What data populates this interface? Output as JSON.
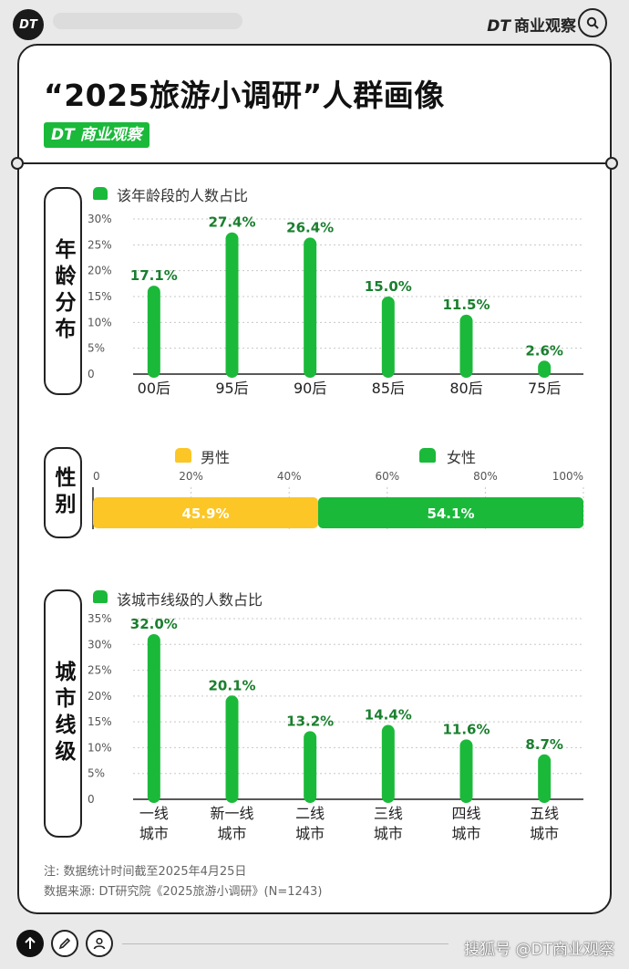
{
  "header": {
    "logo": "DT",
    "brand_mark": "DT",
    "brand_name": "商业观察"
  },
  "title": "“2025旅游小调研”人群画像",
  "badge": {
    "mark": "DT",
    "name": "商业观察"
  },
  "colors": {
    "green": "#1bb93a",
    "yellow": "#fcc626",
    "label_green": "#1a7f2e",
    "dark": "#222222"
  },
  "age_section": {
    "label": "年龄分布",
    "legend": "该年龄段的人数占比"
  },
  "gender_section": {
    "label": "性别"
  },
  "city_section": {
    "label": "城市线级",
    "legend": "该城市线级的人数占比"
  },
  "chart_data": [
    {
      "type": "bar",
      "categories": [
        "00后",
        "95后",
        "90后",
        "85后",
        "80后",
        "75后"
      ],
      "values": [
        17.1,
        27.4,
        26.4,
        15.0,
        11.5,
        2.6
      ],
      "value_labels": [
        "17.1%",
        "27.4%",
        "26.4%",
        "15.0%",
        "11.5%",
        "2.6%"
      ],
      "yticks": [
        "30%",
        "25%",
        "20%",
        "15%",
        "10%",
        "5%",
        "0"
      ],
      "ylim": [
        0,
        30
      ],
      "series": [
        {
          "name": "该年龄段的人数占比"
        }
      ]
    },
    {
      "type": "bar",
      "orientation": "horizontal-stacked",
      "series": [
        {
          "name": "男性",
          "value": 45.9,
          "label": "45.9%"
        },
        {
          "name": "女性",
          "value": 54.1,
          "label": "54.1%"
        }
      ],
      "xticks": [
        "0",
        "20%",
        "40%",
        "60%",
        "80%",
        "100%"
      ],
      "xlim": [
        0,
        100
      ]
    },
    {
      "type": "bar",
      "categories": [
        [
          "一线",
          "城市"
        ],
        [
          "新一线",
          "城市"
        ],
        [
          "二线",
          "城市"
        ],
        [
          "三线",
          "城市"
        ],
        [
          "四线",
          "城市"
        ],
        [
          "五线",
          "城市"
        ]
      ],
      "values": [
        32.0,
        20.1,
        13.2,
        14.4,
        11.6,
        8.7
      ],
      "value_labels": [
        "32.0%",
        "20.1%",
        "13.2%",
        "14.4%",
        "11.6%",
        "8.7%"
      ],
      "yticks": [
        "35%",
        "30%",
        "25%",
        "20%",
        "15%",
        "10%",
        "5%",
        "0"
      ],
      "ylim": [
        0,
        35
      ],
      "series": [
        {
          "name": "该城市线级的人数占比"
        }
      ]
    }
  ],
  "footnotes": {
    "note": "注: 数据统计时间截至2025年4月25日",
    "source": "数据来源: DT研究院《2025旅游小调研》(N=1243)"
  },
  "bottom": {
    "watermark": "搜狐号 @DT商业观察",
    "up_icon": "arrow-up-icon",
    "edit_icon": "pencil-icon",
    "user_icon": "user-icon"
  }
}
